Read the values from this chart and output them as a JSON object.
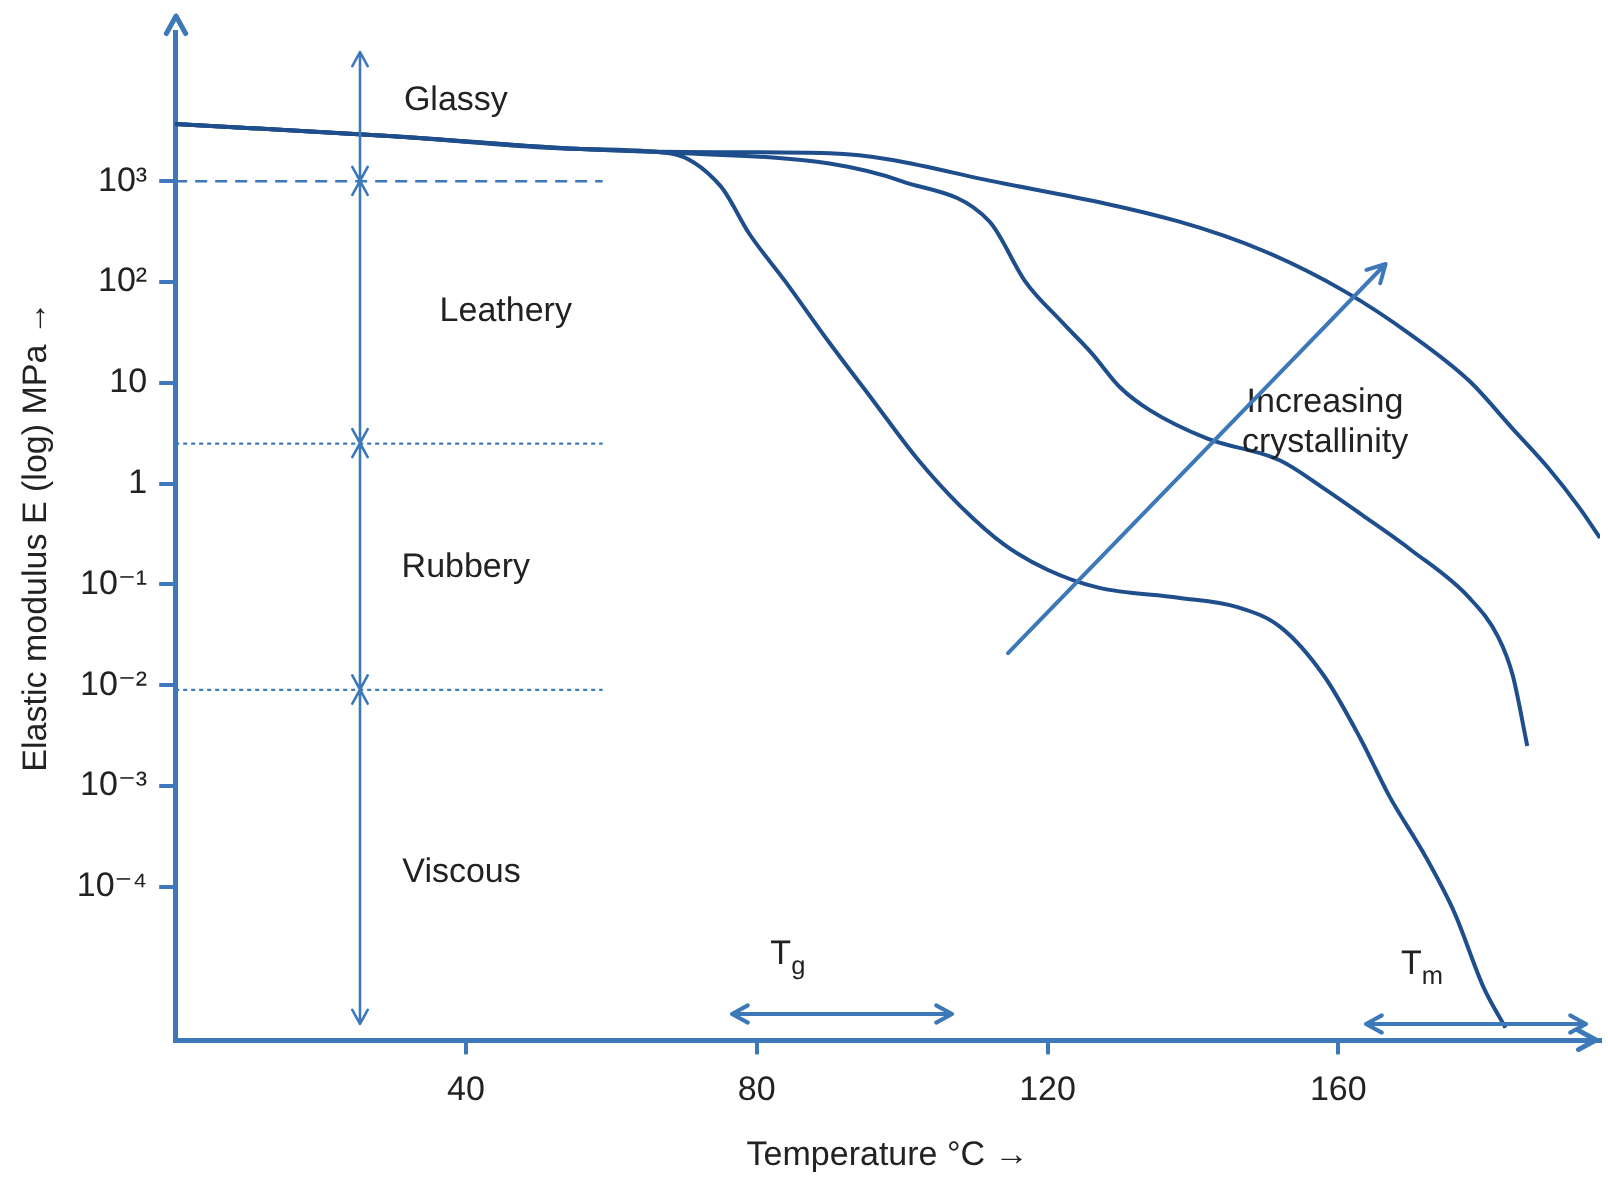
{
  "chart_data": {
    "type": "line",
    "xlabel": "Temperature °C →",
    "ylabel": "Elastic modulus E (log) MPa →",
    "log": "y",
    "grid": false,
    "legend": false,
    "marker": "none",
    "line_style": "solid",
    "xlim": [
      0,
      196
    ],
    "xticks": [
      40,
      80,
      120,
      160
    ],
    "ylim": [
      3e-06,
      30000
    ],
    "yticks": [
      {
        "value": 0.0001,
        "label": "10⁻⁴"
      },
      {
        "value": 0.001,
        "label": "10⁻³"
      },
      {
        "value": 0.01,
        "label": "10⁻²"
      },
      {
        "value": 0.1,
        "label": "10⁻¹"
      },
      1,
      10,
      {
        "value": 100,
        "label": "10²"
      },
      {
        "value": 1000,
        "label": "10³"
      }
    ],
    "series": [
      {
        "color": "#1f4e8c",
        "x": [
          0,
          30,
          55,
          68,
          75,
          79,
          84,
          90,
          96,
          102,
          108,
          114,
          120,
          127,
          138,
          146,
          152,
          158,
          163,
          167,
          172,
          176,
          180,
          183
        ],
        "values": [
          3700,
          2800,
          2100,
          1900,
          900,
          300,
          100,
          25,
          6.7,
          1.8,
          0.6,
          0.25,
          0.14,
          0.093,
          0.074,
          0.06,
          0.038,
          0.0125,
          0.003,
          0.0008,
          0.0002,
          5.5e-05,
          1e-05,
          4e-06
        ]
      },
      {
        "color": "#1f4e8c",
        "x": [
          0,
          30,
          55,
          70,
          90,
          100,
          112,
          117,
          122,
          126,
          130,
          134,
          142,
          152,
          158,
          164,
          170,
          178,
          182,
          184,
          186
        ],
        "values": [
          3700,
          2800,
          2100,
          1900,
          1500,
          1000,
          400,
          100,
          40,
          20,
          9,
          5.4,
          2.8,
          1.7,
          0.9,
          0.45,
          0.22,
          0.074,
          0.03,
          0.0125,
          0.0025
        ]
      },
      {
        "color": "#1f4e8c",
        "x": [
          0,
          30,
          55,
          70,
          90,
          114,
          138,
          150,
          161,
          170,
          178,
          184,
          189,
          193,
          196
        ],
        "values": [
          3700,
          2800,
          2100,
          1950,
          1900,
          950,
          400,
          200,
          80,
          30,
          10.5,
          3.5,
          1.4,
          0.6,
          0.29
        ]
      }
    ],
    "ref_lines": [
      {
        "axis": "y",
        "value": 1000,
        "line_style": "dashed",
        "color": "#3d78b8"
      },
      {
        "axis": "y",
        "value": 2.5,
        "line_style": "dotted",
        "color": "#3d78b8"
      },
      {
        "axis": "y",
        "value": 0.009,
        "line_style": "dotted",
        "color": "#3d78b8"
      }
    ],
    "annotations": [
      "Glassy",
      "Leathery",
      "Rubbery",
      "Viscous",
      "Increasing crystallinity",
      "T$_{g}$",
      "T$_{m}$"
    ]
  }
}
